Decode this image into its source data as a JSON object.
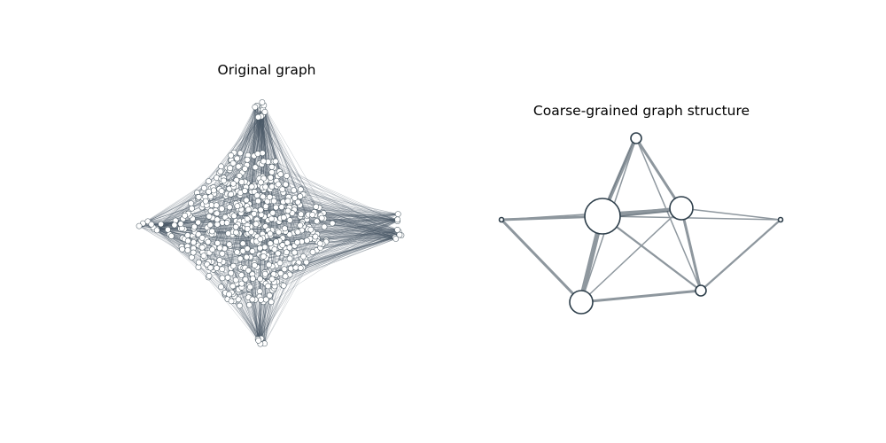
{
  "panels": {
    "left_title": "Original graph",
    "right_title": "Coarse-grained graph structure"
  },
  "colors": {
    "node_stroke": "#2d3e4a",
    "node_fill": "#ffffff",
    "edge": "#4a5a66",
    "coarse_edge": "#8e979e"
  },
  "coarse_graph": {
    "nodes": [
      {
        "id": "top",
        "size": 1
      },
      {
        "id": "center",
        "size": 5
      },
      {
        "id": "right-upper",
        "size": 3
      },
      {
        "id": "far-left",
        "size": 0.4
      },
      {
        "id": "far-right",
        "size": 0.4
      },
      {
        "id": "bottom-left",
        "size": 3
      },
      {
        "id": "bottom-right",
        "size": 1.2
      }
    ],
    "edges": [
      [
        "top",
        "center",
        4
      ],
      [
        "top",
        "right-upper",
        4
      ],
      [
        "top",
        "bottom-right",
        2
      ],
      [
        "top",
        "bottom-left",
        2
      ],
      [
        "center",
        "right-upper",
        5
      ],
      [
        "center",
        "far-left",
        4
      ],
      [
        "center",
        "bottom-left",
        5
      ],
      [
        "center",
        "bottom-right",
        3
      ],
      [
        "right-upper",
        "far-right",
        2
      ],
      [
        "right-upper",
        "bottom-right",
        4
      ],
      [
        "right-upper",
        "bottom-left",
        2
      ],
      [
        "far-left",
        "bottom-left",
        4
      ],
      [
        "far-left",
        "right-upper",
        2
      ],
      [
        "bottom-left",
        "bottom-right",
        4
      ],
      [
        "bottom-right",
        "far-right",
        3
      ],
      [
        "center",
        "far-right",
        2
      ]
    ]
  }
}
